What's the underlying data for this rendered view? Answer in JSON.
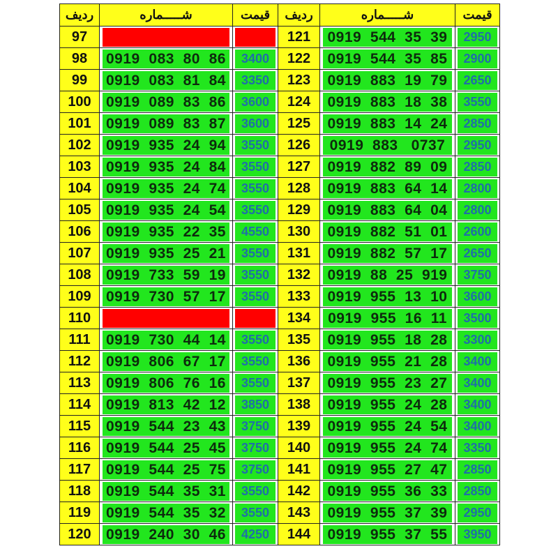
{
  "header": {
    "row": "ردیف",
    "number": "شـــــماره",
    "price": "قیمت"
  },
  "colors": {
    "yellow": "#ffff1a",
    "green": "#22e61e",
    "red": "#ff0000",
    "price_text": "#1f6fa8"
  },
  "left": [
    {
      "row": "97",
      "number": "",
      "price": "",
      "empty": true
    },
    {
      "row": "98",
      "number": "0919  083  80  86",
      "price": "3400"
    },
    {
      "row": "99",
      "number": "0919  083  81  84",
      "price": "3350"
    },
    {
      "row": "100",
      "number": "0919  089  83  86",
      "price": "3600"
    },
    {
      "row": "101",
      "number": "0919  089  83  87",
      "price": "3600"
    },
    {
      "row": "102",
      "number": "0919  935  24  94",
      "price": "3550"
    },
    {
      "row": "103",
      "number": "0919  935  24  84",
      "price": "3550"
    },
    {
      "row": "104",
      "number": "0919  935  24  74",
      "price": "3550"
    },
    {
      "row": "105",
      "number": "0919  935  24  54",
      "price": "3550"
    },
    {
      "row": "106",
      "number": "0919  935  22  35",
      "price": "4550"
    },
    {
      "row": "107",
      "number": "0919  935  25  21",
      "price": "3550"
    },
    {
      "row": "108",
      "number": "0919  733  59  19",
      "price": "3550"
    },
    {
      "row": "109",
      "number": "0919  730  57  17",
      "price": "3550"
    },
    {
      "row": "110",
      "number": "",
      "price": "",
      "empty": true
    },
    {
      "row": "111",
      "number": "0919  730  44  14",
      "price": "3550"
    },
    {
      "row": "112",
      "number": "0919  806  67  17",
      "price": "3550"
    },
    {
      "row": "113",
      "number": "0919  806  76  16",
      "price": "3550"
    },
    {
      "row": "114",
      "number": "0919  813  42  12",
      "price": "3850"
    },
    {
      "row": "115",
      "number": "0919  544  23  43",
      "price": "3750"
    },
    {
      "row": "116",
      "number": "0919  544  25  45",
      "price": "3750"
    },
    {
      "row": "117",
      "number": "0919  544  25  75",
      "price": "3750"
    },
    {
      "row": "118",
      "number": "0919  544  35  31",
      "price": "3550"
    },
    {
      "row": "119",
      "number": "0919  544  35  32",
      "price": "3550"
    },
    {
      "row": "120",
      "number": "0919  240  30  46",
      "price": "4250"
    }
  ],
  "right": [
    {
      "row": "121",
      "number": "0919  544  35  39",
      "price": "2950"
    },
    {
      "row": "122",
      "number": "0919  544  35  85",
      "price": "2900"
    },
    {
      "row": "123",
      "number": "0919  883  19  79",
      "price": "2650"
    },
    {
      "row": "124",
      "number": "0919  883  18  38",
      "price": "3550"
    },
    {
      "row": "125",
      "number": "0919  883  14  24",
      "price": "2850"
    },
    {
      "row": "126",
      "number": "0919  883   0737",
      "price": "2950"
    },
    {
      "row": "127",
      "number": "0919  882  89  09",
      "price": "2850"
    },
    {
      "row": "128",
      "number": "0919  883  64  14",
      "price": "2800"
    },
    {
      "row": "129",
      "number": "0919  883  64  04",
      "price": "2800"
    },
    {
      "row": "130",
      "number": "0919  882  51  01",
      "price": "2600"
    },
    {
      "row": "131",
      "number": "0919  882  57  17",
      "price": "2650"
    },
    {
      "row": "132",
      "number": "0919  88  25  919",
      "price": "3750"
    },
    {
      "row": "133",
      "number": "0919  955  13  10",
      "price": "3600"
    },
    {
      "row": "134",
      "number": "0919  955  16  11",
      "price": "3500"
    },
    {
      "row": "135",
      "number": "0919  955  18  28",
      "price": "3300"
    },
    {
      "row": "136",
      "number": "0919  955  21  28",
      "price": "3400"
    },
    {
      "row": "137",
      "number": "0919  955  23  27",
      "price": "3400"
    },
    {
      "row": "138",
      "number": "0919  955  24  28",
      "price": "3400"
    },
    {
      "row": "139",
      "number": "0919  955  24  54",
      "price": "3400"
    },
    {
      "row": "140",
      "number": "0919  955  24  74",
      "price": "3350"
    },
    {
      "row": "141",
      "number": "0919  955  27  47",
      "price": "2850"
    },
    {
      "row": "142",
      "number": "0919  955  36  33",
      "price": "2850"
    },
    {
      "row": "143",
      "number": "0919  955  37  39",
      "price": "2950"
    },
    {
      "row": "144",
      "number": "0919  955  37  55",
      "price": "3950"
    }
  ]
}
